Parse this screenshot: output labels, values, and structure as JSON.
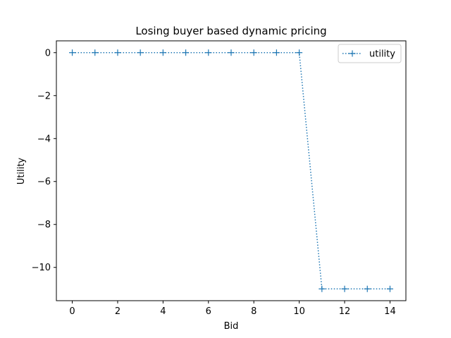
{
  "chart_data": {
    "type": "line",
    "title": "Losing buyer based dynamic pricing",
    "xlabel": "Bid",
    "ylabel": "Utility",
    "xlim": [
      -0.7,
      14.7
    ],
    "ylim": [
      -11.55,
      0.55
    ],
    "xticks": [
      0,
      2,
      4,
      6,
      8,
      10,
      12,
      14
    ],
    "yticks": [
      0,
      -2,
      -4,
      -6,
      -8,
      -10
    ],
    "grid": false,
    "legend_position": "top-right",
    "series": [
      {
        "name": "utility",
        "color": "#1f77b4",
        "line_style": "dotted",
        "marker": "plus",
        "x": [
          0,
          1,
          2,
          3,
          4,
          5,
          6,
          7,
          8,
          9,
          10,
          11,
          12,
          13,
          14
        ],
        "y": [
          0,
          0,
          0,
          0,
          0,
          0,
          0,
          0,
          0,
          0,
          0,
          -11,
          -11,
          -11,
          -11
        ]
      }
    ]
  }
}
